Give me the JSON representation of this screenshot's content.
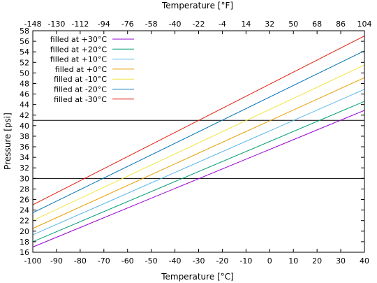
{
  "chart_data": {
    "type": "line",
    "title": "",
    "xlabel": "Temperature [°C]",
    "x2label": "Temperature [°F]",
    "ylabel": "Pressure [psi]",
    "xlim": [
      -100,
      40
    ],
    "ylim": [
      16,
      58
    ],
    "x_ticks": [
      -100,
      -90,
      -80,
      -70,
      -60,
      -50,
      -40,
      -30,
      -20,
      -10,
      0,
      10,
      20,
      30,
      40
    ],
    "x2_ticks": [
      -148,
      -130,
      -112,
      -94,
      -76,
      -58,
      -40,
      -22,
      -4,
      14,
      32,
      50,
      68,
      86,
      104
    ],
    "y_ticks": [
      16,
      18,
      20,
      22,
      24,
      26,
      28,
      30,
      32,
      34,
      36,
      38,
      40,
      42,
      44,
      46,
      48,
      50,
      52,
      54,
      56,
      58
    ],
    "grid": false,
    "legend_position": "top-left",
    "reference_lines": [
      {
        "y": 30,
        "color": "#000000"
      },
      {
        "y": 41,
        "color": "#000000"
      }
    ],
    "series": [
      {
        "name": "filled at +30°C",
        "color": "#9400d3",
        "x": [
          -100,
          40
        ],
        "y": [
          17.0,
          42.9
        ]
      },
      {
        "name": "filled at +20°C",
        "color": "#009e73",
        "x": [
          -100,
          40
        ],
        "y": [
          18.0,
          44.6
        ]
      },
      {
        "name": "filled at +10°C",
        "color": "#56b4e9",
        "x": [
          -100,
          40
        ],
        "y": [
          19.3,
          46.9
        ]
      },
      {
        "name": "filled at +0°C",
        "color": "#e69f00",
        "x": [
          -100,
          40
        ],
        "y": [
          20.5,
          49.1
        ]
      },
      {
        "name": "filled at -10°C",
        "color": "#f0e442",
        "x": [
          -100,
          40
        ],
        "y": [
          22.0,
          51.5
        ]
      },
      {
        "name": "filled at -20°C",
        "color": "#0072b2",
        "x": [
          -100,
          40
        ],
        "y": [
          23.5,
          54.2
        ]
      },
      {
        "name": "filled at -30°C",
        "color": "#e51e10",
        "x": [
          -100,
          40
        ],
        "y": [
          25.0,
          57.0
        ]
      }
    ]
  }
}
